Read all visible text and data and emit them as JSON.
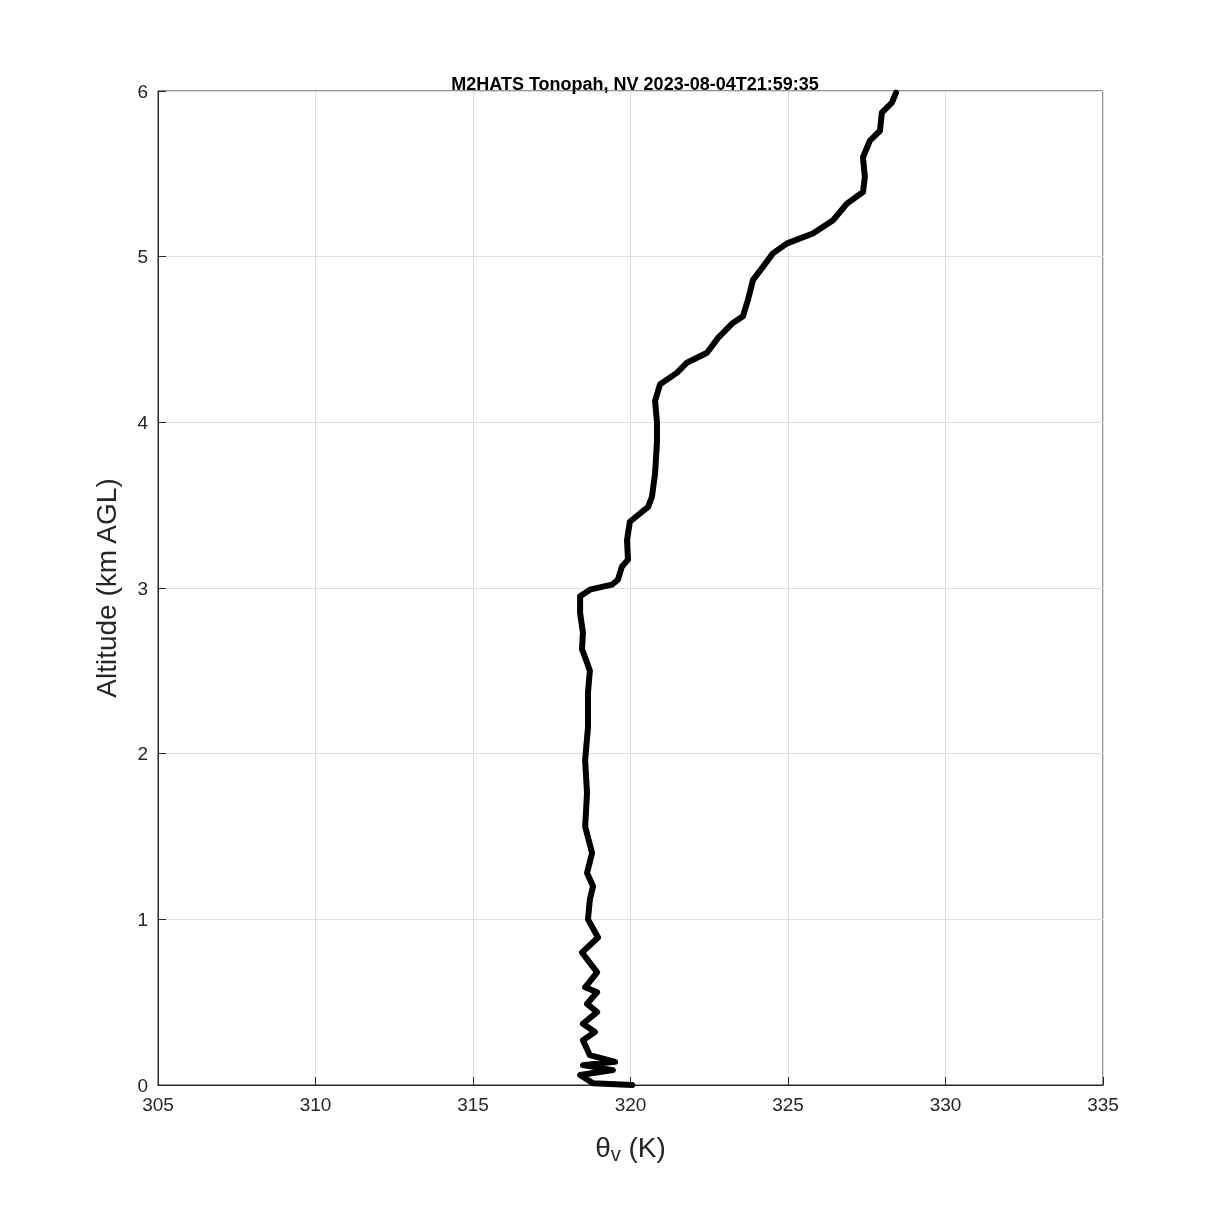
{
  "chart_data": {
    "type": "line",
    "title": "M2HATS Tonopah, NV 2023-08-04T21:59:35",
    "xlabel": "θ$_{v}$ (K)",
    "ylabel": "Altitude (km AGL)",
    "xlim": [
      305,
      335
    ],
    "xticks": [
      305,
      310,
      315,
      320,
      325,
      330,
      335
    ],
    "ylim": [
      0,
      6
    ],
    "yticks": [
      0,
      1,
      2,
      3,
      4,
      5,
      6
    ],
    "grid": true,
    "marker": "none",
    "line_style": "solid",
    "series": [
      {
        "color": "#000000",
        "x": [
          320.05,
          318.81,
          318.4,
          319.44,
          318.49,
          319.51,
          318.71,
          318.49,
          318.87,
          318.49,
          318.94,
          318.62,
          318.94,
          318.56,
          318.94,
          318.46,
          318.97,
          318.65,
          318.71,
          318.81,
          318.62,
          318.78,
          318.56,
          318.62,
          318.56,
          318.65,
          318.65,
          318.71,
          318.56,
          318.46,
          318.49,
          318.4,
          318.4,
          318.71,
          319.41,
          319.6,
          319.73,
          319.92,
          319.89,
          319.98,
          320.3,
          320.56,
          320.68,
          320.78,
          320.84,
          320.84,
          320.78,
          320.94,
          321.48,
          321.79,
          322.43,
          322.78,
          323.25,
          323.57,
          323.73,
          323.89,
          324.21,
          324.52,
          324.97,
          325.79,
          326.43,
          326.87,
          327.38,
          327.44,
          327.38,
          327.6,
          327.92,
          327.98,
          328.3,
          328.43
        ],
        "values": [
          0.0,
          0.01,
          0.06,
          0.09,
          0.12,
          0.14,
          0.18,
          0.27,
          0.32,
          0.37,
          0.44,
          0.49,
          0.56,
          0.59,
          0.68,
          0.8,
          0.89,
          1.0,
          1.12,
          1.2,
          1.28,
          1.4,
          1.56,
          1.76,
          1.96,
          2.16,
          2.37,
          2.5,
          2.58,
          2.63,
          2.73,
          2.85,
          2.95,
          2.99,
          3.02,
          3.05,
          3.13,
          3.17,
          3.29,
          3.4,
          3.45,
          3.49,
          3.55,
          3.69,
          3.88,
          4.0,
          4.13,
          4.23,
          4.3,
          4.36,
          4.42,
          4.51,
          4.6,
          4.64,
          4.74,
          4.86,
          4.94,
          5.02,
          5.08,
          5.14,
          5.22,
          5.32,
          5.39,
          5.48,
          5.6,
          5.7,
          5.76,
          5.87,
          5.93,
          5.99
        ]
      }
    ]
  }
}
